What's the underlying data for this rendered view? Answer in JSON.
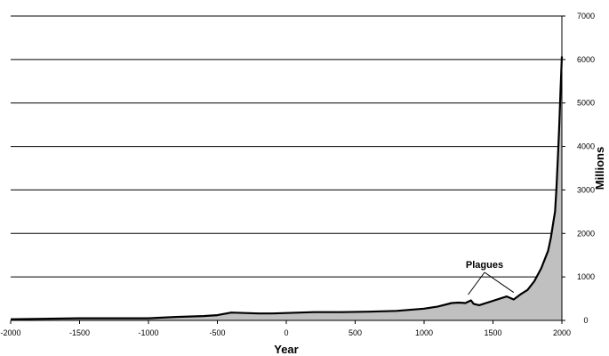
{
  "chart_data": {
    "type": "area",
    "title": "",
    "xlabel": "Year",
    "ylabel": "Millions",
    "xlim": [
      -2000,
      2000
    ],
    "ylim": [
      0,
      7000
    ],
    "x_ticks": [
      -2000,
      -1500,
      -1000,
      -500,
      0,
      500,
      1000,
      1500,
      2000
    ],
    "y_ticks": [
      0,
      1000,
      2000,
      3000,
      4000,
      5000,
      6000,
      7000
    ],
    "y_axis_position": "right",
    "grid": "horizontal",
    "legend": "none",
    "fill_color": "#c0c0c0",
    "line_color": "#000000",
    "series": [
      {
        "x": [
          -2000,
          -1500,
          -1000,
          -800,
          -600,
          -500,
          -400,
          -300,
          -200,
          -100,
          0,
          200,
          400,
          600,
          800,
          1000,
          1100,
          1200,
          1250,
          1300,
          1340,
          1360,
          1400,
          1500,
          1600,
          1650,
          1700,
          1750,
          1800,
          1850,
          1900,
          1920,
          1940,
          1950,
          1960,
          1970,
          1980,
          1990,
          2000
        ],
        "y": [
          27,
          50,
          50,
          80,
          100,
          120,
          180,
          170,
          160,
          160,
          170,
          190,
          190,
          200,
          220,
          270,
          320,
          400,
          410,
          400,
          460,
          380,
          350,
          450,
          550,
          480,
          600,
          700,
          900,
          1200,
          1600,
          1900,
          2300,
          2500,
          3000,
          3700,
          4400,
          5300,
          6070
        ]
      }
    ],
    "annotations": [
      {
        "text": "Plagues",
        "points_at_x": [
          1320,
          1650
        ]
      }
    ]
  }
}
